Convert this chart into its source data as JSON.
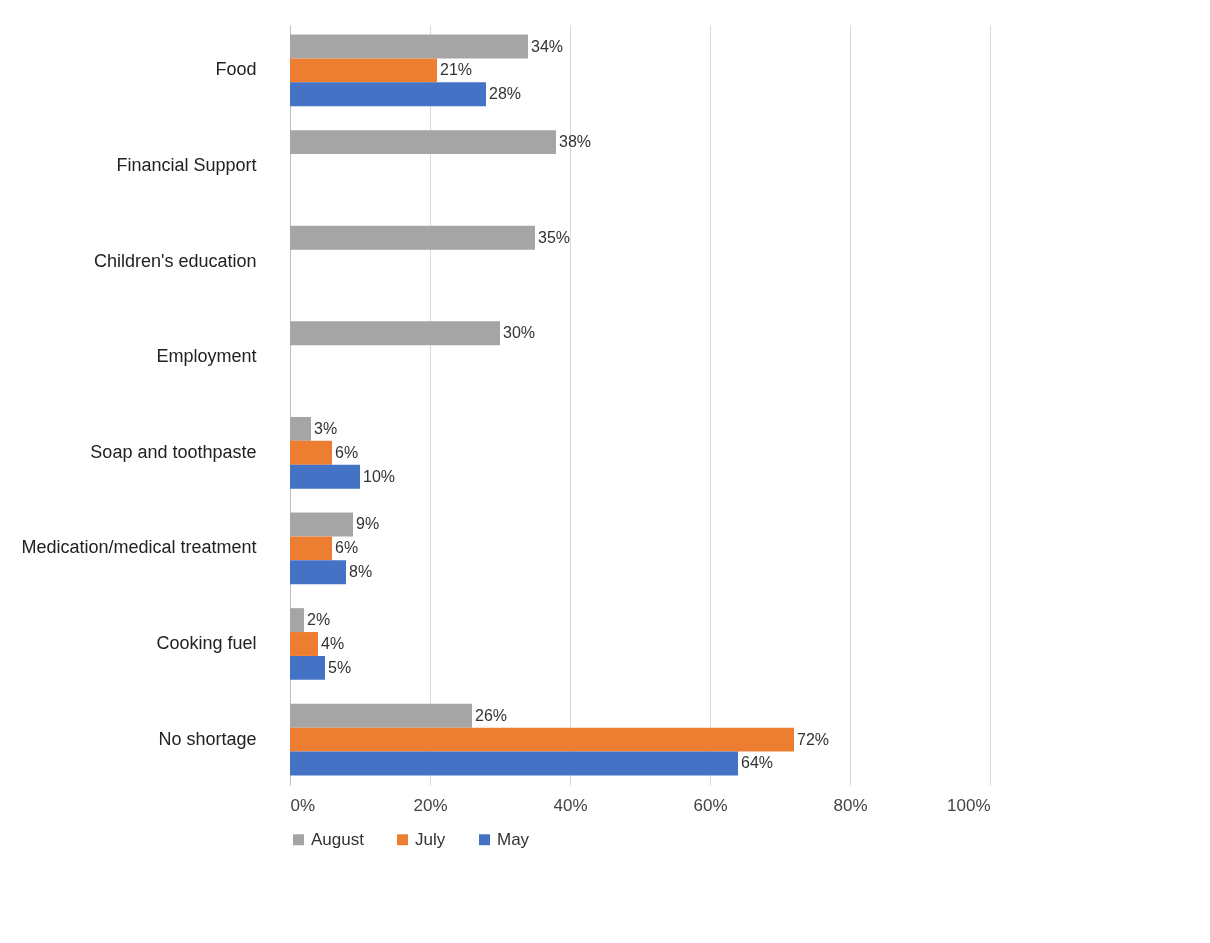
{
  "chart_data": {
    "type": "bar",
    "orientation": "horizontal",
    "categories": [
      "Food",
      "Financial Support",
      "Children's education",
      "Employment",
      "Soap and toothpaste",
      "Medication/medical treatment",
      "Cooking fuel",
      "No shortage"
    ],
    "series": [
      {
        "name": "August",
        "color": "#a5a5a5",
        "values": [
          34,
          38,
          35,
          30,
          3,
          9,
          2,
          26
        ],
        "value_labels": [
          "34%",
          "38%",
          "35%",
          "30%",
          "3%",
          "9%",
          "2%",
          "26%"
        ]
      },
      {
        "name": "July",
        "color": "#ed7d31",
        "values": [
          21,
          null,
          null,
          null,
          6,
          6,
          4,
          72
        ],
        "value_labels": [
          "21%",
          null,
          null,
          null,
          "6%",
          "6%",
          "4%",
          "72%"
        ]
      },
      {
        "name": "May",
        "color": "#4472c4",
        "values": [
          28,
          null,
          null,
          null,
          10,
          8,
          5,
          64
        ],
        "value_labels": [
          "28%",
          null,
          null,
          null,
          "10%",
          "8%",
          "5%",
          "64%"
        ]
      }
    ],
    "xlim": [
      0,
      100
    ],
    "xticks": [
      {
        "value": 0,
        "label": "0%"
      },
      {
        "value": 20,
        "label": "20%"
      },
      {
        "value": 40,
        "label": "40%"
      },
      {
        "value": 60,
        "label": "60%"
      },
      {
        "value": 80,
        "label": "80%"
      },
      {
        "value": 100,
        "label": "100%"
      }
    ],
    "grid": "x",
    "legend": "bottom"
  }
}
